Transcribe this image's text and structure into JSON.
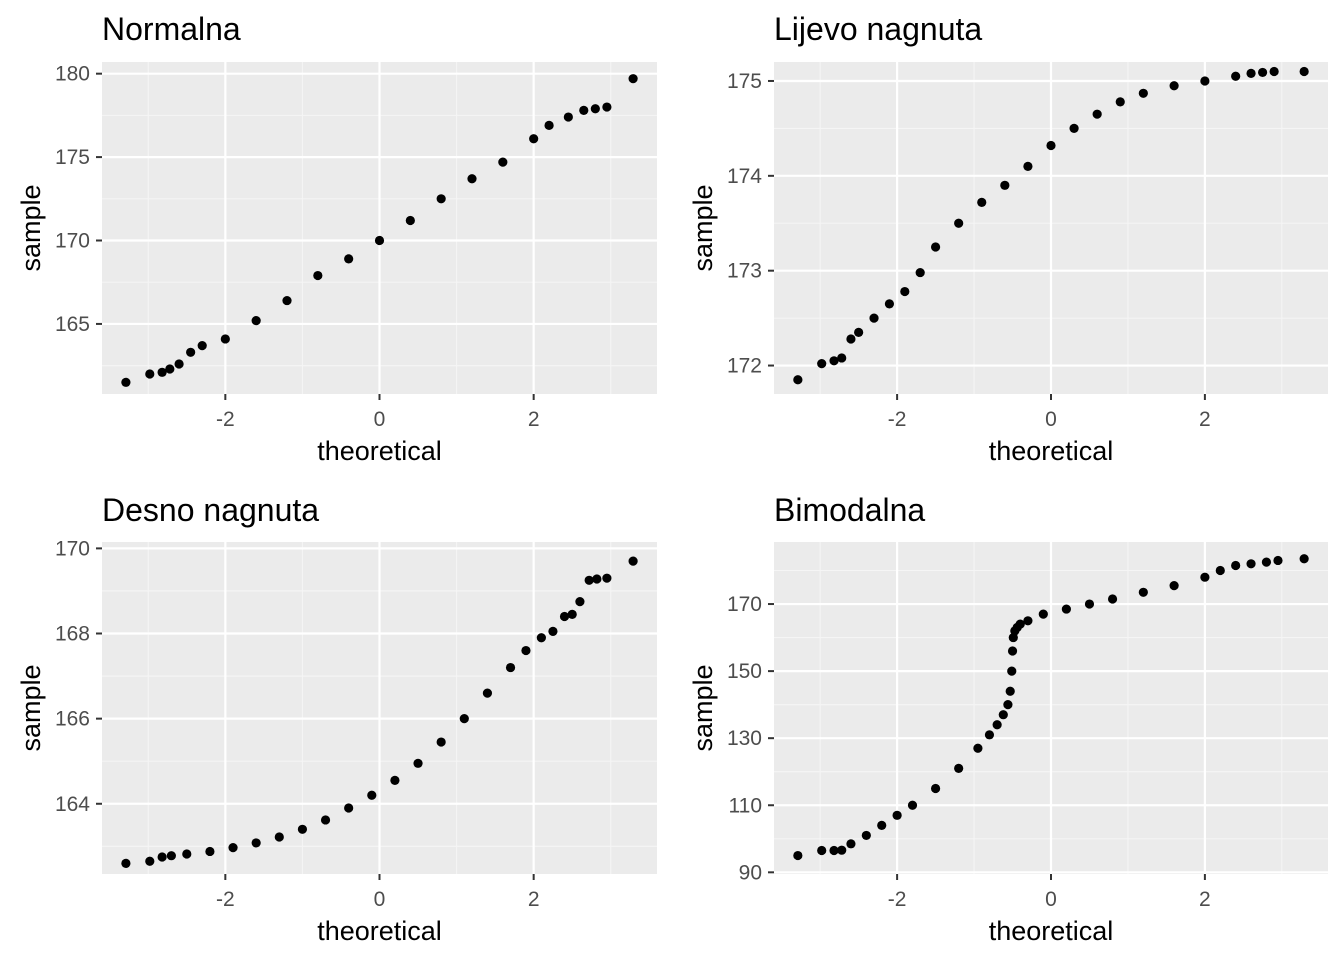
{
  "colors": {
    "panel_background": "#ebebeb",
    "grid_major": "#ffffff",
    "grid_minor": "#f5f5f5",
    "tick_mark": "#333333",
    "tick_text": "#4d4d4d",
    "point": "#000000"
  },
  "chart_data": [
    {
      "type": "scatter",
      "title": "Normalna",
      "xlabel": "theoretical",
      "ylabel": "sample",
      "xlim": [
        -3.6,
        3.6
      ],
      "ylim": [
        160.8,
        180.7
      ],
      "xticks": [
        -2,
        0,
        2
      ],
      "xtick_labels": [
        "-2",
        "0",
        "2"
      ],
      "yticks": [
        165,
        170,
        175,
        180
      ],
      "ytick_labels": [
        "165",
        "170",
        "175",
        "180"
      ],
      "grid": true,
      "x": [
        -3.29,
        -2.98,
        -2.82,
        -2.72,
        -2.6,
        -2.45,
        -2.3,
        -2.0,
        -1.6,
        -1.2,
        -0.8,
        -0.4,
        0.0,
        0.4,
        0.8,
        1.2,
        1.6,
        2.0,
        2.2,
        2.45,
        2.65,
        2.8,
        2.95,
        3.29
      ],
      "y": [
        161.5,
        162.0,
        162.1,
        162.3,
        162.6,
        163.3,
        163.7,
        164.1,
        165.2,
        166.4,
        167.9,
        168.9,
        170.0,
        171.2,
        172.5,
        173.7,
        174.7,
        176.1,
        176.9,
        177.4,
        177.8,
        177.9,
        178.0,
        179.7
      ]
    },
    {
      "type": "scatter",
      "title": "Lijevo nagnuta",
      "xlabel": "theoretical",
      "ylabel": "sample",
      "xlim": [
        -3.6,
        3.6
      ],
      "ylim": [
        171.7,
        175.2
      ],
      "xticks": [
        -2,
        0,
        2
      ],
      "xtick_labels": [
        "-2",
        "0",
        "2"
      ],
      "yticks": [
        172,
        173,
        174,
        175
      ],
      "ytick_labels": [
        "172",
        "173",
        "174",
        "175"
      ],
      "grid": true,
      "x": [
        -3.29,
        -2.98,
        -2.82,
        -2.72,
        -2.6,
        -2.5,
        -2.3,
        -2.1,
        -1.9,
        -1.7,
        -1.5,
        -1.2,
        -0.9,
        -0.6,
        -0.3,
        0.0,
        0.3,
        0.6,
        0.9,
        1.2,
        1.6,
        2.0,
        2.4,
        2.6,
        2.75,
        2.9,
        3.29
      ],
      "y": [
        171.85,
        172.02,
        172.05,
        172.08,
        172.28,
        172.35,
        172.5,
        172.65,
        172.78,
        172.98,
        173.25,
        173.5,
        173.72,
        173.9,
        174.1,
        174.32,
        174.5,
        174.65,
        174.78,
        174.87,
        174.95,
        175.0,
        175.05,
        175.08,
        175.09,
        175.1,
        175.1
      ]
    },
    {
      "type": "scatter",
      "title": "Desno nagnuta",
      "xlabel": "theoretical",
      "ylabel": "sample",
      "xlim": [
        -3.6,
        3.6
      ],
      "ylim": [
        162.35,
        170.15
      ],
      "xticks": [
        -2,
        0,
        2
      ],
      "xtick_labels": [
        "-2",
        "0",
        "2"
      ],
      "yticks": [
        164,
        166,
        168,
        170
      ],
      "ytick_labels": [
        "164",
        "166",
        "168",
        "170"
      ],
      "grid": true,
      "x": [
        -3.29,
        -2.98,
        -2.82,
        -2.7,
        -2.5,
        -2.2,
        -1.9,
        -1.6,
        -1.3,
        -1.0,
        -0.7,
        -0.4,
        -0.1,
        0.2,
        0.5,
        0.8,
        1.1,
        1.4,
        1.7,
        1.9,
        2.1,
        2.25,
        2.4,
        2.5,
        2.6,
        2.72,
        2.82,
        2.95,
        3.29
      ],
      "y": [
        162.6,
        162.65,
        162.75,
        162.78,
        162.82,
        162.88,
        162.97,
        163.08,
        163.22,
        163.4,
        163.62,
        163.9,
        164.2,
        164.55,
        164.95,
        165.45,
        166.0,
        166.6,
        167.2,
        167.6,
        167.9,
        168.05,
        168.4,
        168.45,
        168.75,
        169.25,
        169.28,
        169.3,
        169.7
      ]
    },
    {
      "type": "scatter",
      "title": "Bimodalna",
      "xlabel": "theoretical",
      "ylabel": "sample",
      "xlim": [
        -3.6,
        3.6
      ],
      "ylim": [
        89.5,
        188.5
      ],
      "xticks": [
        -2,
        0,
        2
      ],
      "xtick_labels": [
        "-2",
        "0",
        "2"
      ],
      "yticks": [
        90,
        110,
        130,
        150,
        170
      ],
      "ytick_labels": [
        "90",
        "110",
        "130",
        "150",
        "170"
      ],
      "grid": true,
      "x": [
        -3.29,
        -2.98,
        -2.82,
        -2.72,
        -2.6,
        -2.4,
        -2.2,
        -2.0,
        -1.8,
        -1.5,
        -1.2,
        -0.95,
        -0.8,
        -0.7,
        -0.62,
        -0.56,
        -0.53,
        -0.51,
        -0.5,
        -0.49,
        -0.47,
        -0.44,
        -0.4,
        -0.3,
        -0.1,
        0.2,
        0.5,
        0.8,
        1.2,
        1.6,
        2.0,
        2.2,
        2.4,
        2.6,
        2.8,
        2.95,
        3.29
      ],
      "y": [
        95.0,
        96.5,
        96.5,
        96.6,
        98.5,
        101.0,
        104.0,
        107.0,
        110.0,
        115.0,
        121.0,
        127.0,
        131.0,
        134.0,
        137.0,
        140.0,
        144.0,
        150.0,
        156.0,
        160.0,
        162.0,
        163.0,
        164.0,
        165.0,
        167.0,
        168.5,
        170.0,
        171.5,
        173.5,
        175.5,
        178.0,
        180.0,
        181.5,
        182.0,
        182.5,
        183.0,
        183.5
      ]
    }
  ]
}
